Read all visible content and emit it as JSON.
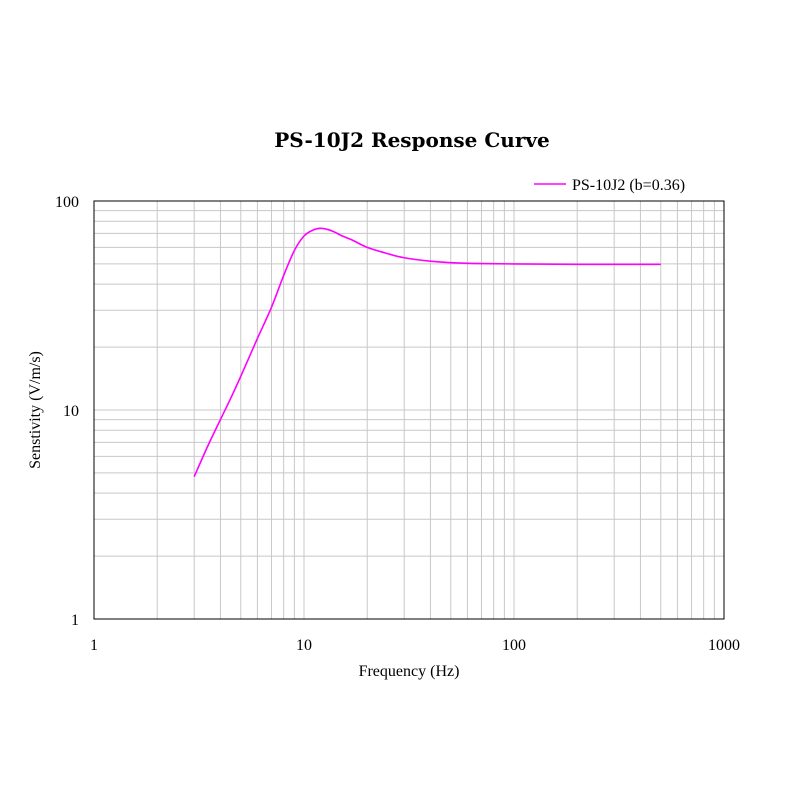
{
  "chart_data": {
    "type": "line",
    "title": "PS-10J2 Response Curve",
    "xlabel": "Frequency (Hz)",
    "ylabel": "Senstivity (V/m/s)",
    "x_scale": "log",
    "y_scale": "log",
    "xlim": [
      1,
      1000
    ],
    "ylim": [
      1,
      100
    ],
    "x_ticks": [
      1,
      10,
      100,
      1000
    ],
    "y_ticks": [
      1,
      10,
      100
    ],
    "x_tick_labels": [
      "1",
      "10",
      "100",
      "1000"
    ],
    "y_tick_labels": [
      "1",
      "10",
      "100"
    ],
    "grid": true,
    "legend_position": "top-right",
    "series": [
      {
        "name": "PS-10J2 (b=0.36)",
        "color": "#ff00ff",
        "points": [
          [
            3,
            4.8
          ],
          [
            3.5,
            6.8
          ],
          [
            4,
            9.0
          ],
          [
            4.5,
            11.5
          ],
          [
            5,
            14.5
          ],
          [
            6,
            22
          ],
          [
            7,
            31
          ],
          [
            8,
            44
          ],
          [
            9,
            58
          ],
          [
            10,
            68
          ],
          [
            11,
            72.5
          ],
          [
            12,
            74
          ],
          [
            13,
            73
          ],
          [
            14,
            71
          ],
          [
            15,
            68.5
          ],
          [
            17,
            65
          ],
          [
            20,
            60
          ],
          [
            25,
            56
          ],
          [
            30,
            53.5
          ],
          [
            40,
            51.5
          ],
          [
            50,
            50.7
          ],
          [
            70,
            50.2
          ],
          [
            100,
            50
          ],
          [
            200,
            49.8
          ],
          [
            500,
            49.8
          ]
        ]
      }
    ]
  }
}
